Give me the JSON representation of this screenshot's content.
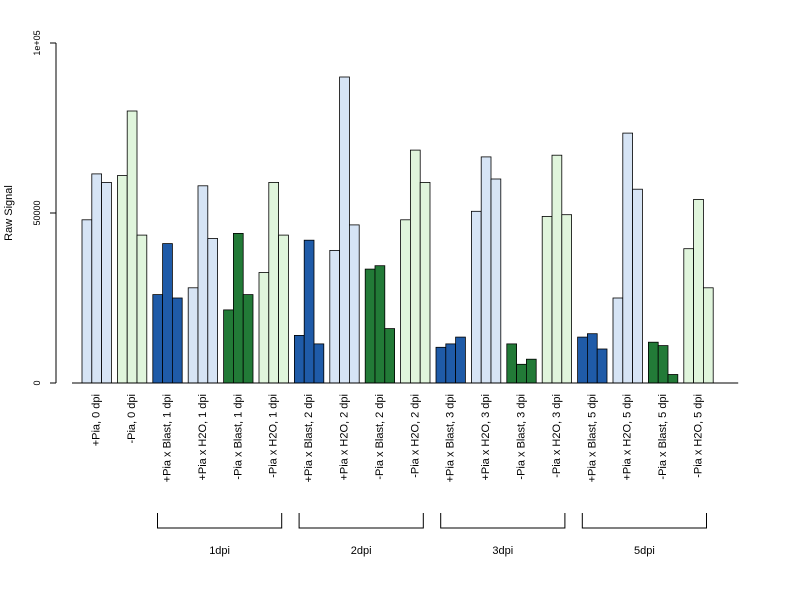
{
  "chart_data": {
    "type": "bar",
    "title": "",
    "xlabel": "",
    "ylabel": "Raw Signal",
    "ylim": [
      0,
      100000
    ],
    "yticks": [
      {
        "value": 0,
        "label": "0"
      },
      {
        "value": 50000,
        "label": "50000"
      },
      {
        "value": 100000,
        "label": "1e+05"
      }
    ],
    "grid": false,
    "legend": "none",
    "colors": {
      "light_blue": "#d6e4f5",
      "light_green": "#e0f5dc",
      "dark_blue": "#1f5ba8",
      "dark_green": "#227a37",
      "outline": "#000000"
    },
    "groups": [
      {
        "label": "+Pia, 0 dpi",
        "color": "light_blue",
        "values": [
          48000,
          61500,
          59000
        ]
      },
      {
        "label": "-Pia, 0 dpi",
        "color": "light_green",
        "values": [
          61000,
          80000,
          43500
        ]
      },
      {
        "label": "+Pia x Blast, 1 dpi",
        "color": "dark_blue",
        "values": [
          26000,
          41000,
          25000
        ]
      },
      {
        "label": "+Pia x H2O, 1 dpi",
        "color": "light_blue",
        "values": [
          28000,
          58000,
          42500
        ]
      },
      {
        "label": "-Pia x Blast, 1 dpi",
        "color": "dark_green",
        "values": [
          21500,
          44000,
          26000
        ]
      },
      {
        "label": "-Pia x H2O, 1 dpi",
        "color": "light_green",
        "values": [
          32500,
          59000,
          43500
        ]
      },
      {
        "label": "+Pia x Blast, 2 dpi",
        "color": "dark_blue",
        "values": [
          14000,
          42000,
          11500
        ]
      },
      {
        "label": "+Pia x H2O, 2 dpi",
        "color": "light_blue",
        "values": [
          39000,
          90000,
          46500
        ]
      },
      {
        "label": "-Pia x Blast, 2 dpi",
        "color": "dark_green",
        "values": [
          33500,
          34500,
          16000
        ]
      },
      {
        "label": "-Pia x H2O, 2 dpi",
        "color": "light_green",
        "values": [
          48000,
          68500,
          59000
        ]
      },
      {
        "label": "+Pia x Blast, 3 dpi",
        "color": "dark_blue",
        "values": [
          10500,
          11500,
          13500
        ]
      },
      {
        "label": "+Pia x H2O, 3 dpi",
        "color": "light_blue",
        "values": [
          50500,
          66500,
          60000
        ]
      },
      {
        "label": "-Pia x Blast, 3 dpi",
        "color": "dark_green",
        "values": [
          11500,
          5500,
          7000
        ]
      },
      {
        "label": "-Pia x H2O, 3 dpi",
        "color": "light_green",
        "values": [
          49000,
          67000,
          49500
        ]
      },
      {
        "label": "+Pia x Blast, 5 dpi",
        "color": "dark_blue",
        "values": [
          13500,
          14500,
          10000
        ]
      },
      {
        "label": "+Pia x H2O, 5 dpi",
        "color": "light_blue",
        "values": [
          25000,
          73500,
          57000
        ]
      },
      {
        "label": "-Pia x Blast, 5 dpi",
        "color": "dark_green",
        "values": [
          12000,
          11000,
          2500
        ]
      },
      {
        "label": "-Pia x H2O, 5 dpi",
        "color": "light_green",
        "values": [
          39500,
          54000,
          28000
        ]
      }
    ],
    "brackets": [
      {
        "label": "1dpi",
        "from_group": 2,
        "to_group": 5
      },
      {
        "label": "2dpi",
        "from_group": 6,
        "to_group": 9
      },
      {
        "label": "3dpi",
        "from_group": 10,
        "to_group": 13
      },
      {
        "label": "5dpi",
        "from_group": 14,
        "to_group": 17
      }
    ]
  }
}
